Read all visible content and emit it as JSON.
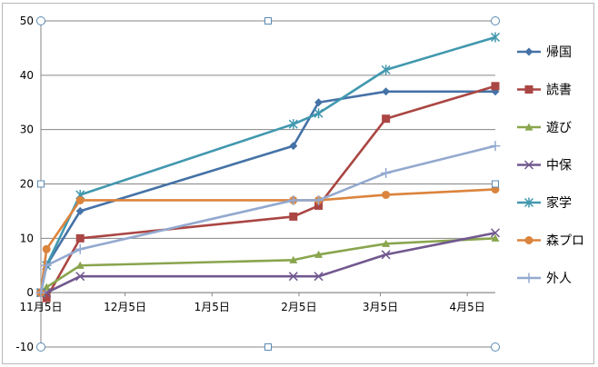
{
  "chart_data": {
    "type": "line",
    "title": "",
    "xlabel": "",
    "ylabel": "",
    "ylim": [
      -10,
      50
    ],
    "yticks": [
      -10,
      0,
      10,
      20,
      30,
      40,
      50
    ],
    "x_dates": [
      "11月5日",
      "11月7日",
      "11月19日",
      "2月3日",
      "2月12日",
      "3月7日",
      "4月15日"
    ],
    "xtick_labels": [
      "11月5日",
      "12月5日",
      "1月5日",
      "2月5日",
      "3月5日",
      "4月5日"
    ],
    "grid": "horizontal",
    "legend": "right",
    "series": [
      {
        "name": "帰国",
        "color": "#4572a7",
        "marker": "diamond",
        "values": [
          0,
          5,
          15,
          27,
          35,
          37,
          37
        ]
      },
      {
        "name": "読書",
        "color": "#aa4643",
        "marker": "square",
        "values": [
          0,
          -1,
          10,
          14,
          16,
          32,
          38
        ]
      },
      {
        "name": "遊び",
        "color": "#89a54e",
        "marker": "triangle",
        "values": [
          0,
          1,
          5,
          6,
          7,
          9,
          10
        ]
      },
      {
        "name": "中保",
        "color": "#71588f",
        "marker": "x",
        "values": [
          0,
          0,
          3,
          3,
          3,
          7,
          11
        ]
      },
      {
        "name": "家学",
        "color": "#4198af",
        "marker": "star",
        "values": [
          0,
          5,
          18,
          31,
          33,
          41,
          47
        ]
      },
      {
        "name": "森プロ",
        "color": "#db843d",
        "marker": "circle",
        "values": [
          0,
          8,
          17,
          17,
          17,
          18,
          19
        ]
      },
      {
        "name": "外人",
        "color": "#93a9cf",
        "marker": "plus",
        "values": [
          0,
          5,
          8,
          17,
          17,
          22,
          27
        ]
      }
    ]
  }
}
